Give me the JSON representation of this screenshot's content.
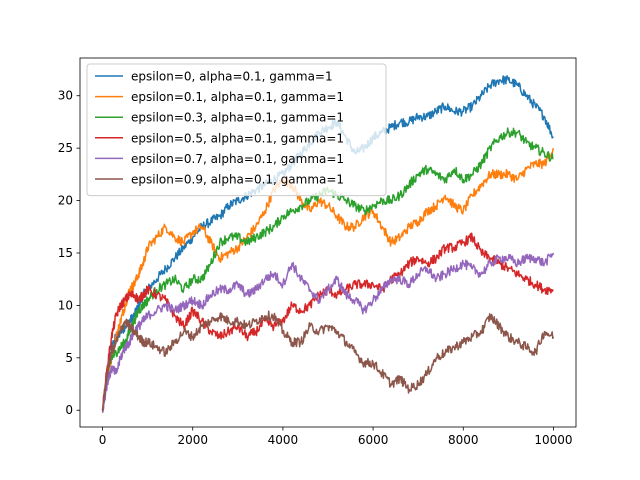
{
  "chart_data": {
    "type": "line",
    "title": "",
    "xlabel": "",
    "ylabel": "",
    "xlim": [
      -500,
      10500
    ],
    "ylim": [
      -1.6,
      33.6
    ],
    "x_ticks": [
      0,
      2000,
      4000,
      6000,
      8000,
      10000
    ],
    "y_ticks": [
      0,
      5,
      10,
      15,
      20,
      25,
      30
    ],
    "grid": false,
    "legend_position": "upper-left",
    "series": [
      {
        "name": "epsilon=0, alpha=0.1, gamma=1",
        "color": "#1f77b4",
        "x": [
          0,
          100,
          200,
          300,
          400,
          500,
          600,
          700,
          800,
          900,
          1000,
          1200,
          1400,
          1600,
          1800,
          2000,
          2200,
          2400,
          2600,
          2800,
          3000,
          3200,
          3400,
          3600,
          3800,
          4000,
          4200,
          4400,
          4600,
          4800,
          5000,
          5200,
          5400,
          5600,
          5800,
          6000,
          6200,
          6400,
          6600,
          6800,
          7000,
          7200,
          7400,
          7600,
          7800,
          8000,
          8200,
          8400,
          8600,
          8800,
          9000,
          9200,
          9400,
          9600,
          9800,
          10000
        ],
        "values": [
          0,
          3.5,
          6,
          7,
          7.5,
          8,
          8.5,
          9,
          10,
          11,
          11.5,
          12.5,
          13.5,
          14.5,
          15.5,
          16.5,
          17.5,
          18,
          18.5,
          19.5,
          20,
          20.5,
          21,
          21.5,
          22,
          22.5,
          23.5,
          24.5,
          25.5,
          26.5,
          27,
          27.5,
          26,
          24.5,
          25,
          26,
          26.5,
          27,
          27.5,
          27.5,
          28,
          28,
          28.5,
          29,
          28.5,
          28.5,
          29,
          30,
          31,
          31.5,
          31.5,
          31,
          30,
          29,
          28,
          26
        ]
      },
      {
        "name": "epsilon=0.1, alpha=0.1, gamma=1",
        "color": "#ff7f0e",
        "x": [
          0,
          100,
          200,
          300,
          400,
          500,
          600,
          700,
          800,
          900,
          1000,
          1200,
          1400,
          1600,
          1800,
          2000,
          2200,
          2400,
          2600,
          2800,
          3000,
          3200,
          3400,
          3600,
          3800,
          4000,
          4200,
          4400,
          4600,
          4800,
          5000,
          5200,
          5400,
          5600,
          5800,
          6000,
          6200,
          6400,
          6600,
          6800,
          7000,
          7200,
          7400,
          7600,
          7800,
          8000,
          8200,
          8400,
          8600,
          8800,
          9000,
          9200,
          9400,
          9600,
          9800,
          10000
        ],
        "values": [
          0,
          3,
          5,
          7,
          8.5,
          10,
          11.5,
          12,
          13,
          14,
          15.5,
          16.5,
          17.5,
          16.5,
          16,
          17,
          17.5,
          16,
          14.5,
          15,
          15.5,
          16.5,
          17.5,
          19,
          21,
          22,
          21.5,
          20,
          19,
          20,
          19.5,
          18.5,
          17.5,
          17.5,
          18.5,
          19,
          17.5,
          16,
          16.5,
          17.5,
          18,
          19,
          19.5,
          20.5,
          19.5,
          19,
          20.5,
          21.5,
          22.5,
          22.5,
          22.5,
          22,
          23,
          23.5,
          23.5,
          25
        ]
      },
      {
        "name": "epsilon=0.3, alpha=0.1, gamma=1",
        "color": "#2ca02c",
        "x": [
          0,
          100,
          200,
          300,
          400,
          500,
          600,
          700,
          800,
          900,
          1000,
          1200,
          1400,
          1600,
          1800,
          2000,
          2200,
          2400,
          2600,
          2800,
          3000,
          3200,
          3400,
          3600,
          3800,
          4000,
          4200,
          4400,
          4600,
          4800,
          5000,
          5200,
          5400,
          5600,
          5800,
          6000,
          6200,
          6400,
          6600,
          6800,
          7000,
          7200,
          7400,
          7600,
          7800,
          8000,
          8200,
          8400,
          8600,
          8800,
          9000,
          9200,
          9400,
          9600,
          9800,
          10000
        ],
        "values": [
          0,
          3,
          5,
          5.5,
          6,
          6.5,
          7.5,
          8.5,
          9.5,
          10,
          10.5,
          11.5,
          12,
          12.5,
          11.5,
          12.5,
          12.5,
          14,
          16,
          16.5,
          16.5,
          16,
          16.5,
          17,
          17.5,
          18.5,
          19,
          19.5,
          20,
          20.5,
          21,
          20.5,
          20,
          19.5,
          19,
          19.5,
          20,
          20,
          20.5,
          21.5,
          22.5,
          23,
          22.5,
          22,
          23,
          22,
          22.5,
          23.5,
          25,
          26,
          26.5,
          26.5,
          25.5,
          25,
          24.5,
          24
        ]
      },
      {
        "name": "epsilon=0.5, alpha=0.1, gamma=1",
        "color": "#d62728",
        "x": [
          0,
          100,
          200,
          300,
          400,
          500,
          600,
          700,
          800,
          900,
          1000,
          1200,
          1400,
          1600,
          1800,
          2000,
          2200,
          2400,
          2600,
          2800,
          3000,
          3200,
          3400,
          3600,
          3800,
          4000,
          4200,
          4400,
          4600,
          4800,
          5000,
          5200,
          5400,
          5600,
          5800,
          6000,
          6200,
          6400,
          6600,
          6800,
          7000,
          7200,
          7400,
          7600,
          7800,
          8000,
          8200,
          8400,
          8600,
          8800,
          9000,
          9200,
          9400,
          9600,
          9800,
          10000
        ],
        "values": [
          0,
          4,
          7,
          9,
          10,
          10.5,
          11,
          11,
          10.5,
          11,
          11.5,
          11,
          10.5,
          9,
          8,
          9.5,
          8.5,
          7.5,
          7,
          7.5,
          8,
          7,
          7.5,
          8.5,
          8,
          8.5,
          10,
          9.5,
          10,
          11,
          11.5,
          11,
          11.5,
          12,
          12,
          12,
          11.5,
          12.5,
          13,
          14,
          14.5,
          14,
          14.5,
          15.5,
          15.5,
          16,
          16.5,
          15,
          14.5,
          14,
          13.5,
          13,
          12.5,
          12,
          11.5,
          11.5
        ]
      },
      {
        "name": "epsilon=0.7, alpha=0.1, gamma=1",
        "color": "#9467bd",
        "x": [
          0,
          100,
          200,
          300,
          400,
          500,
          600,
          700,
          800,
          900,
          1000,
          1200,
          1400,
          1600,
          1800,
          2000,
          2200,
          2400,
          2600,
          2800,
          3000,
          3200,
          3400,
          3600,
          3800,
          4000,
          4200,
          4400,
          4600,
          4800,
          5000,
          5200,
          5400,
          5600,
          5800,
          6000,
          6200,
          6400,
          6600,
          6800,
          7000,
          7200,
          7400,
          7600,
          7800,
          8000,
          8200,
          8400,
          8600,
          8800,
          9000,
          9200,
          9400,
          9600,
          9800,
          10000
        ],
        "values": [
          0,
          2.5,
          4,
          3.5,
          5,
          6,
          6.5,
          7.5,
          8,
          8.5,
          9,
          9.5,
          10,
          9.5,
          10,
          10.5,
          10,
          11,
          11.5,
          11.5,
          12,
          11,
          11.5,
          12.5,
          13,
          12,
          14,
          12.5,
          11.5,
          10.5,
          11.5,
          12.5,
          11,
          10.5,
          9.5,
          10.5,
          11.5,
          12.5,
          12.5,
          12,
          13,
          13.5,
          12.5,
          13,
          13.5,
          14,
          13.5,
          13,
          14,
          14.5,
          14.5,
          14,
          14.5,
          14.5,
          14,
          15
        ]
      },
      {
        "name": "epsilon=0.9, alpha=0.1, gamma=1",
        "color": "#8c564b",
        "x": [
          0,
          100,
          200,
          300,
          400,
          500,
          600,
          700,
          800,
          900,
          1000,
          1200,
          1400,
          1600,
          1800,
          2000,
          2200,
          2400,
          2600,
          2800,
          3000,
          3200,
          3400,
          3600,
          3800,
          4000,
          4200,
          4400,
          4600,
          4800,
          5000,
          5200,
          5400,
          5600,
          5800,
          6000,
          6200,
          6400,
          6600,
          6800,
          7000,
          7200,
          7400,
          7600,
          7800,
          8000,
          8200,
          8400,
          8600,
          8800,
          9000,
          9200,
          9400,
          9600,
          9800,
          10000
        ],
        "values": [
          0,
          3.5,
          5.5,
          6.5,
          7.5,
          8.5,
          8,
          7.5,
          7,
          6.5,
          6.5,
          6,
          5.5,
          6.5,
          7.5,
          7,
          8,
          8.5,
          9,
          8.5,
          8.5,
          8,
          8.5,
          9,
          9,
          7.5,
          6.5,
          6.5,
          8,
          7.5,
          8,
          7.5,
          6.5,
          5.5,
          4.5,
          4.5,
          3.5,
          2.5,
          3,
          2,
          2.5,
          3.5,
          5,
          5.5,
          6,
          6.5,
          7,
          7.5,
          9,
          8,
          7,
          6.5,
          6,
          5.5,
          7.5,
          7
        ]
      }
    ]
  }
}
